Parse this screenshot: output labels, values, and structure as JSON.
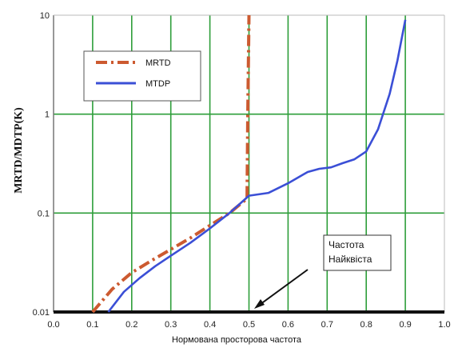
{
  "chart_data": {
    "type": "line",
    "title": "",
    "xlabel": "Нормована просторова частота",
    "ylabel": "MRTD/MDTP(K)",
    "xlim": [
      0.0,
      1.0
    ],
    "ylim": [
      0.01,
      10
    ],
    "yscale": "log",
    "grid": true,
    "legend_position": "top-left",
    "x_ticks": [
      "0.0",
      "0.1",
      "0.2",
      "0.3",
      "0.4",
      "0.5",
      "0.6",
      "0.7",
      "0.8",
      "0.9",
      "1.0"
    ],
    "y_ticks": [
      {
        "value": 0.01,
        "label": "0.01"
      },
      {
        "value": 0.1,
        "label": "0.1"
      },
      {
        "value": 1,
        "label": "1"
      },
      {
        "value": 10,
        "label": "10"
      }
    ],
    "series": [
      {
        "name": "MRTD",
        "color": "#cc5a30",
        "style": "dashdot",
        "x": [
          0.1,
          0.15,
          0.2,
          0.25,
          0.3,
          0.35,
          0.4,
          0.45,
          0.48,
          0.495,
          0.497,
          0.5
        ],
        "y": [
          0.01,
          0.017,
          0.025,
          0.033,
          0.043,
          0.056,
          0.075,
          0.1,
          0.125,
          0.14,
          1,
          10
        ]
      },
      {
        "name": "MTDP",
        "color": "#3b4fd6",
        "style": "solid",
        "x": [
          0.14,
          0.18,
          0.22,
          0.26,
          0.3,
          0.35,
          0.4,
          0.45,
          0.5,
          0.55,
          0.6,
          0.65,
          0.68,
          0.71,
          0.74,
          0.77,
          0.8,
          0.83,
          0.86,
          0.88,
          0.9
        ],
        "y": [
          0.01,
          0.016,
          0.022,
          0.029,
          0.037,
          0.05,
          0.07,
          0.1,
          0.15,
          0.16,
          0.2,
          0.26,
          0.28,
          0.29,
          0.32,
          0.35,
          0.42,
          0.7,
          1.6,
          3.5,
          9
        ]
      }
    ],
    "annotations": [
      {
        "text_lines": [
          "Частота",
          "Найквіста"
        ],
        "points_to_x": 0.5,
        "points_to_y": 0.01
      }
    ]
  }
}
